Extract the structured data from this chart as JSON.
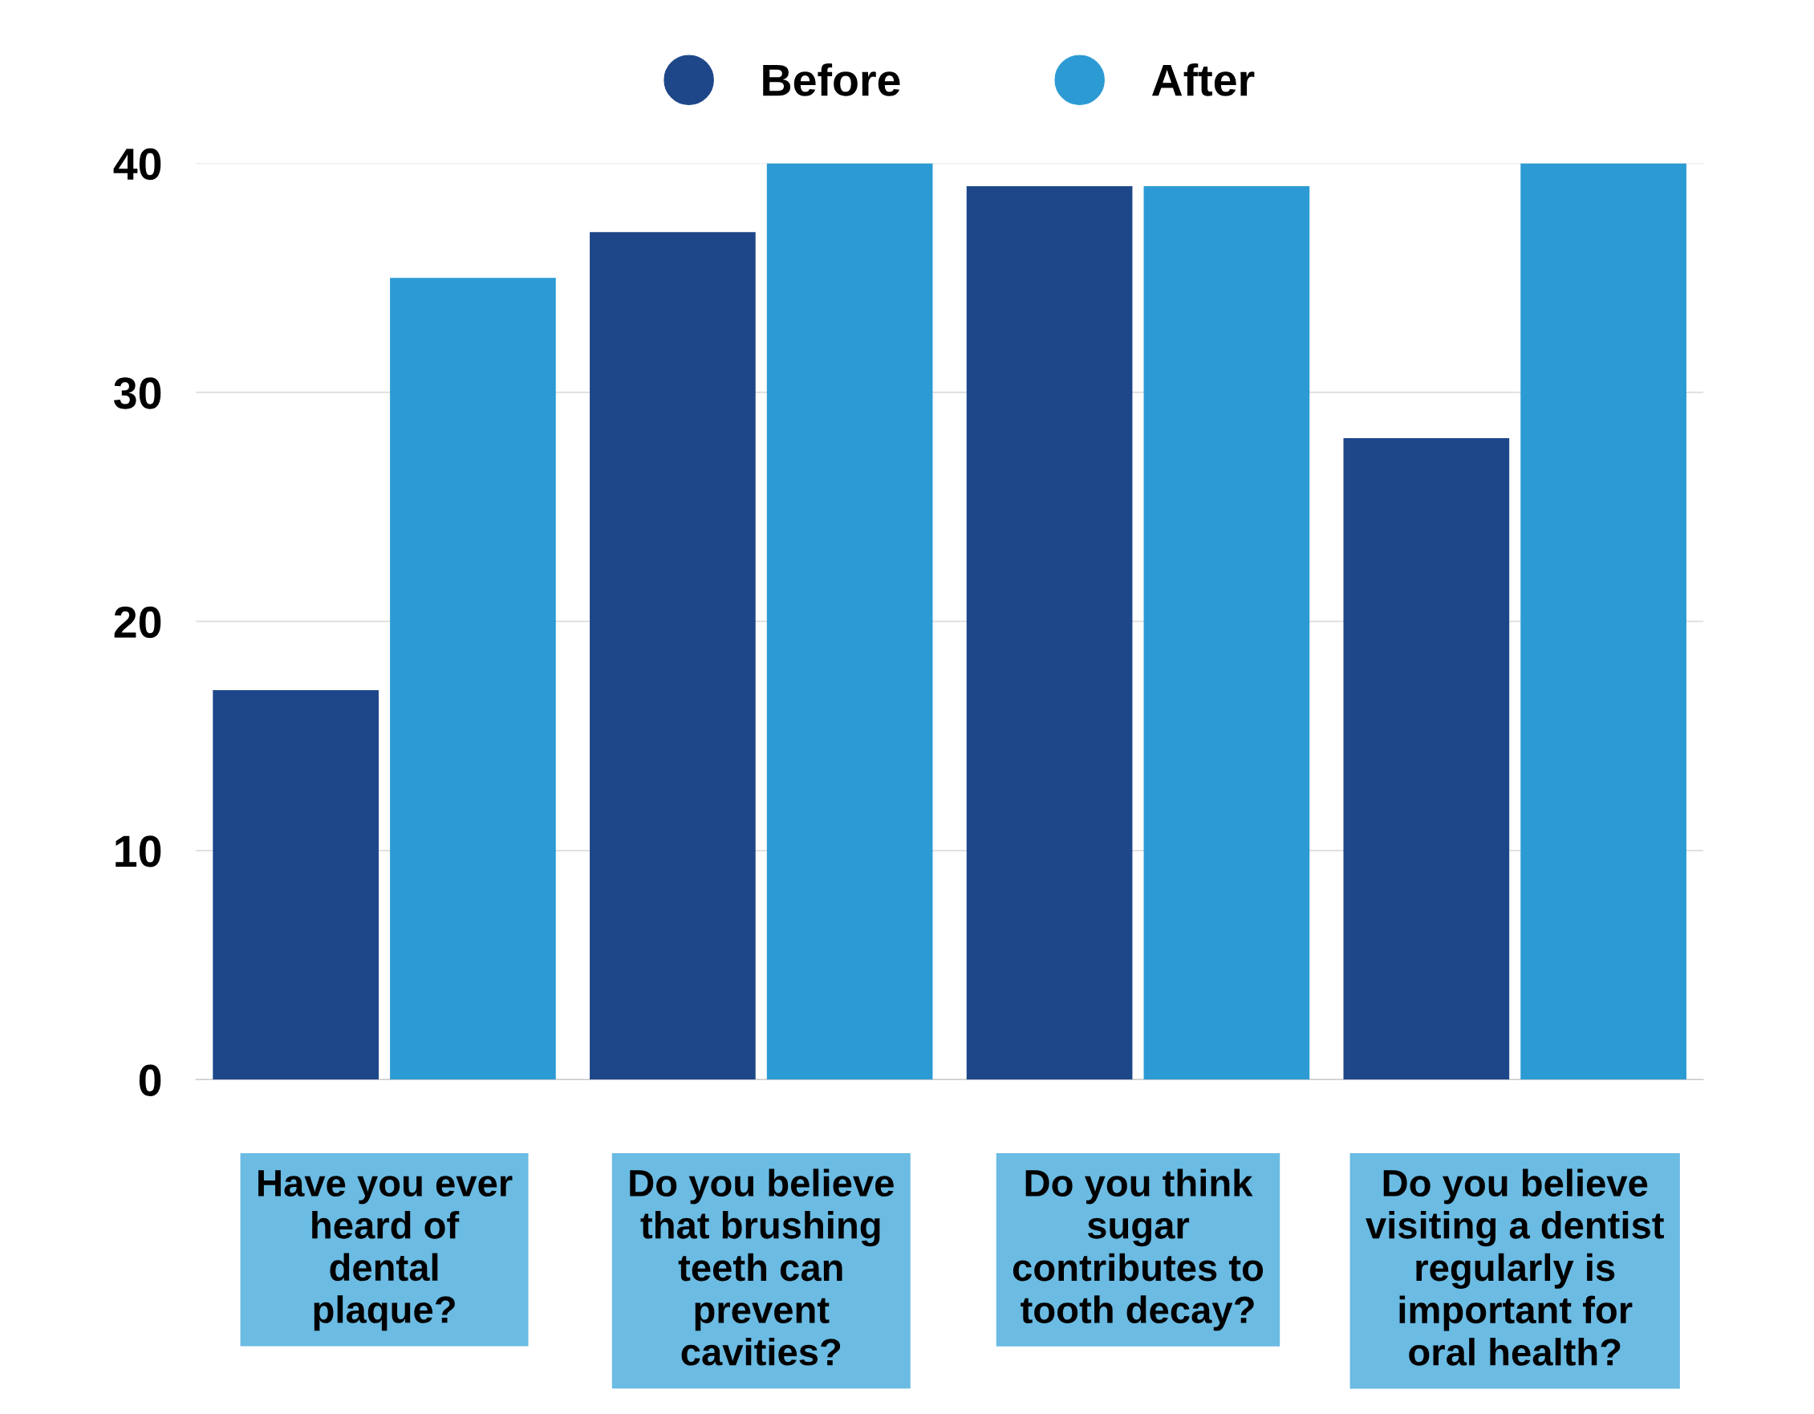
{
  "chart_data": {
    "type": "bar",
    "categories": [
      "Have you ever\nheard of\ndental\nplaque?",
      "Do you believe\nthat brushing\nteeth can\nprevent\ncavities?",
      "Do you think\nsugar\ncontributes to\ntooth decay?",
      "Do you believe\nvisiting a dentist\nregularly is\nimportant for\noral health?"
    ],
    "series": [
      {
        "name": "Before",
        "color": "#1d4789",
        "values": [
          17,
          37,
          39,
          28
        ]
      },
      {
        "name": "After",
        "color": "#2c9bd4",
        "values": [
          35,
          40,
          39,
          40
        ]
      }
    ],
    "ylim": [
      0,
      40
    ],
    "yticks": [
      0,
      10,
      20,
      30,
      40
    ],
    "grid": "y",
    "legend": "top",
    "marker": "circle"
  }
}
